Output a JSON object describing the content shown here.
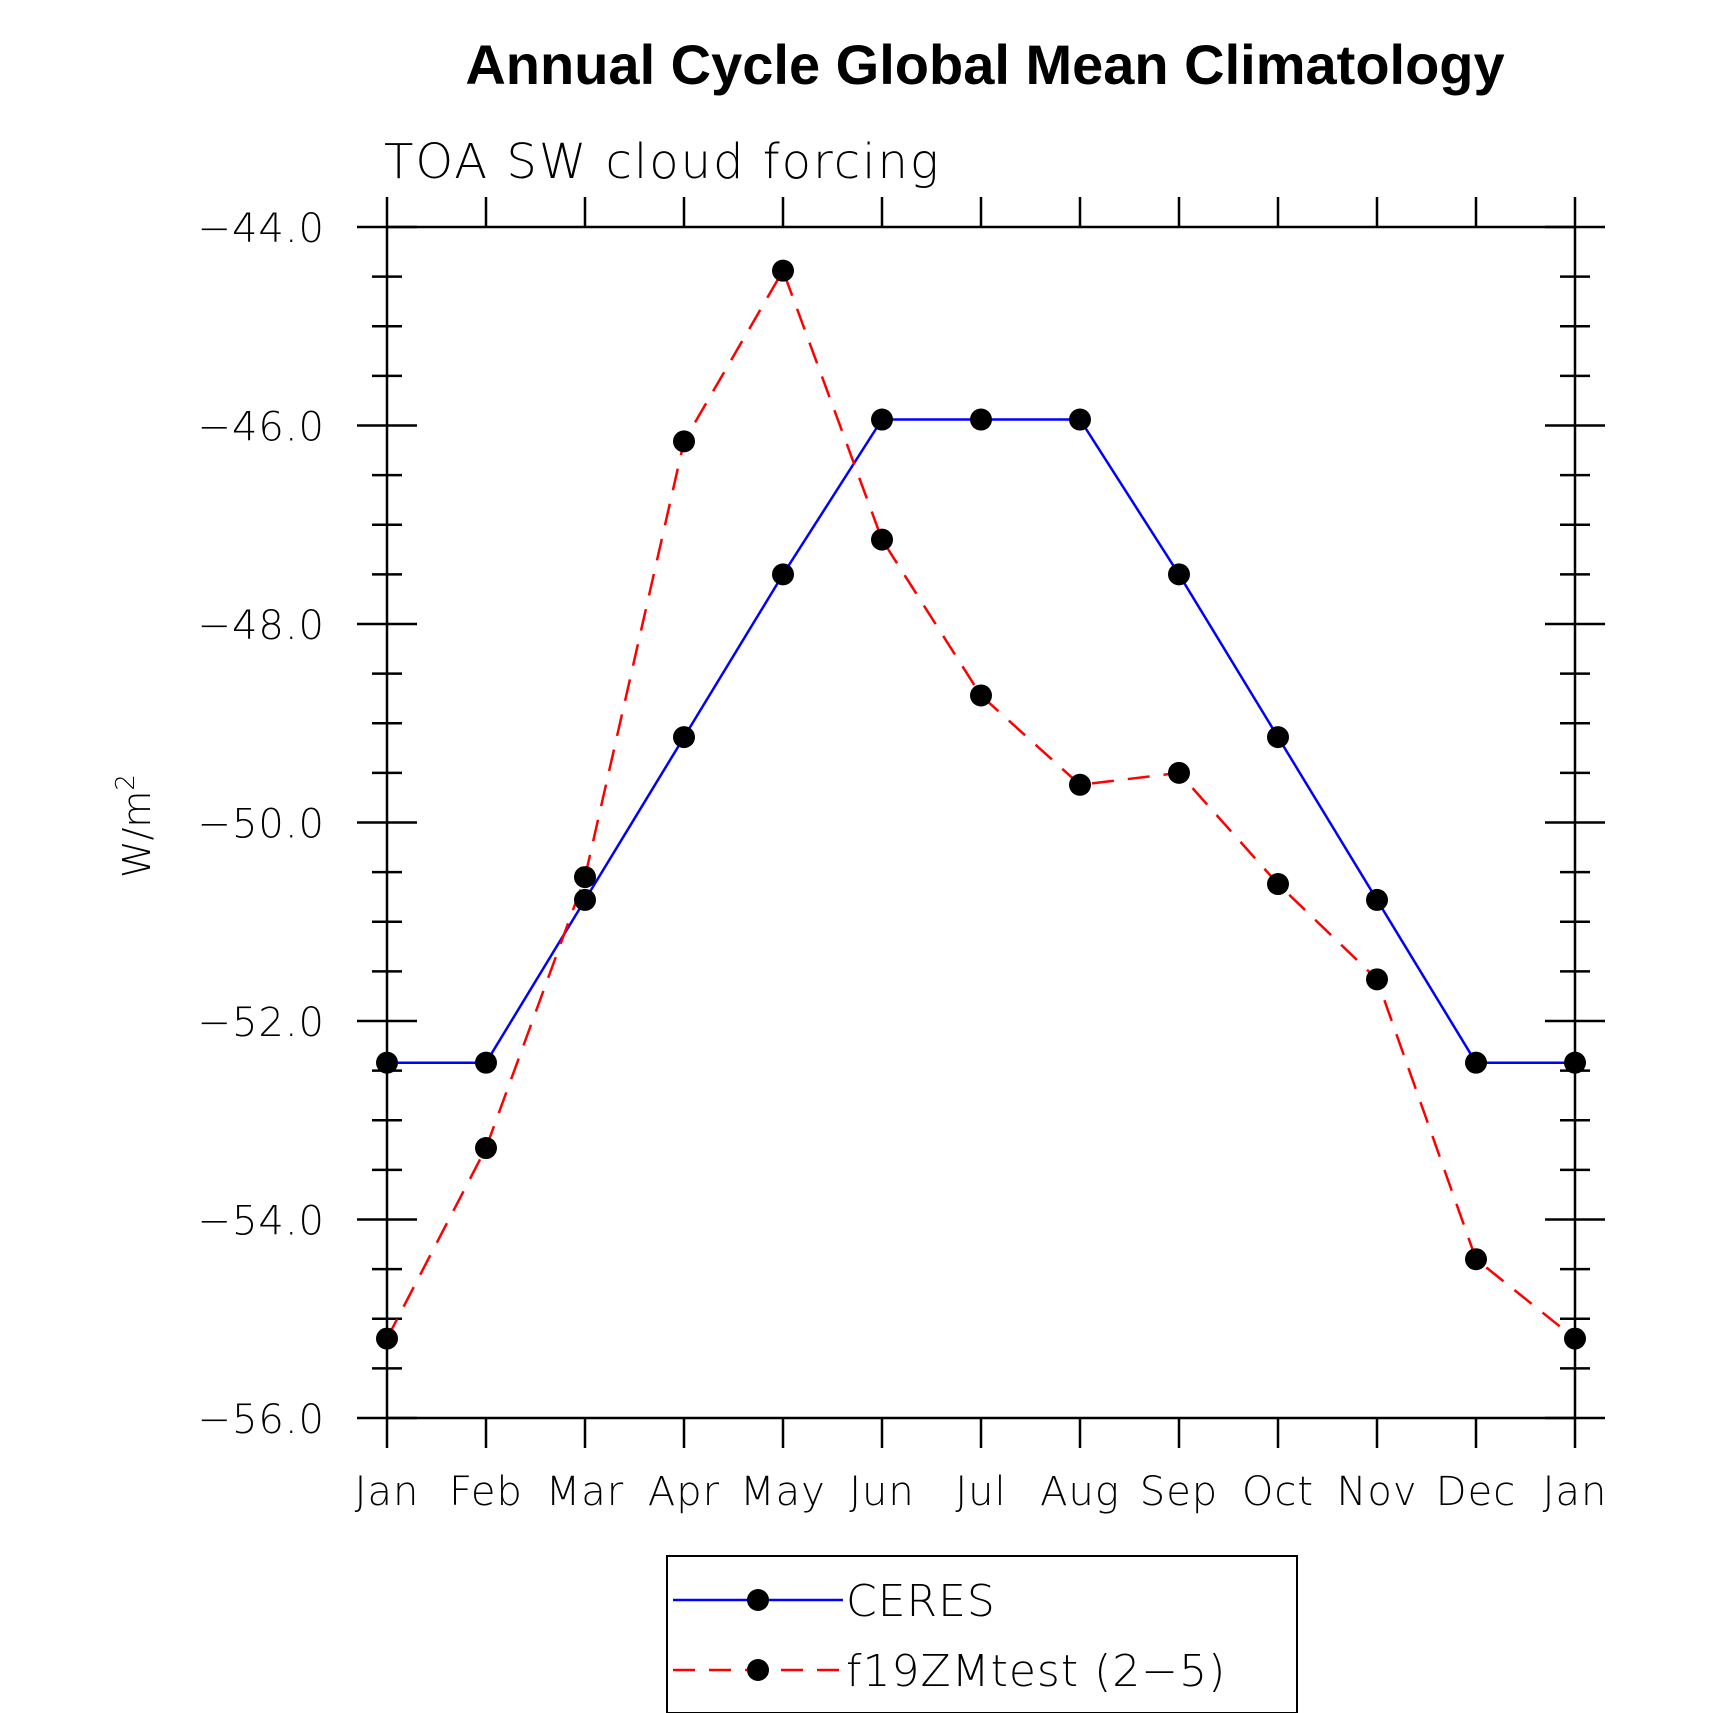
{
  "chart_data": {
    "type": "line",
    "title": "Annual Cycle Global Mean Climatology",
    "subtitle": "TOA SW cloud forcing",
    "ylabel": "W/m",
    "ylabel_superscript": "2",
    "ylim": [
      -56.0,
      -44.0
    ],
    "yticks": [
      -44.0,
      -46.0,
      -48.0,
      -50.0,
      -52.0,
      -54.0,
      -56.0
    ],
    "ytick_labels": [
      "−44.0",
      "−46.0",
      "−48.0",
      "−50.0",
      "−52.0",
      "−54.0",
      "−56.0"
    ],
    "categories": [
      "Jan",
      "Feb",
      "Mar",
      "Apr",
      "May",
      "Jun",
      "Jul",
      "Aug",
      "Sep",
      "Oct",
      "Nov",
      "Dec",
      "Jan"
    ],
    "series": [
      {
        "name": "CERES",
        "color": "#0000ff",
        "dashed": false,
        "values": [
          -52.42,
          -52.42,
          -50.78,
          -49.14,
          -47.5,
          -45.94,
          -45.94,
          -45.94,
          -47.5,
          -49.14,
          -50.78,
          -52.42,
          -52.42
        ]
      },
      {
        "name": "f19ZMtest (2−5)",
        "color": "#ff0000",
        "dashed": true,
        "values": [
          -55.2,
          -53.28,
          -50.55,
          -46.16,
          -44.44,
          -47.15,
          -48.72,
          -49.62,
          -49.5,
          -50.62,
          -51.58,
          -54.4,
          -55.2
        ]
      }
    ],
    "grid": false,
    "legend_position": "bottom"
  }
}
